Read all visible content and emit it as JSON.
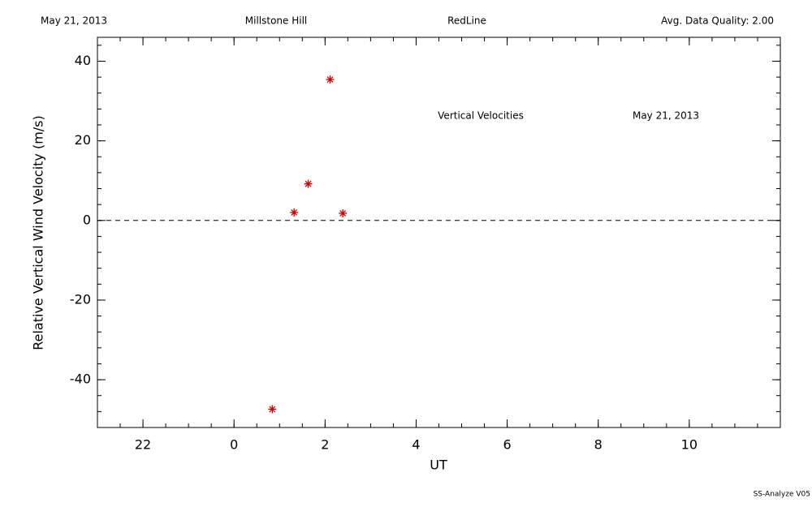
{
  "header": {
    "left": "May 21, 2013",
    "site": "Millstone Hill",
    "filter": "RedLine",
    "quality": "Avg. Data Quality: 2.00"
  },
  "footer": "SS-Analyze V05",
  "chart_data": {
    "type": "scatter",
    "annotations": [
      "Vertical Velocities",
      "May 21, 2013"
    ],
    "xlabel": "UT",
    "ylabel": "Relative Vertical Wind Velocity (m/s)",
    "x": [
      0.84,
      1.32,
      1.63,
      2.11,
      2.39
    ],
    "values": [
      -47.4,
      2.0,
      9.2,
      35.4,
      1.8
    ],
    "color": "#cc0000",
    "marker": "asterisk",
    "xlim": [
      -3,
      12
    ],
    "xticks": [
      {
        "value": -2,
        "label": "22"
      },
      0,
      2,
      4,
      6,
      8,
      10
    ],
    "ylim": [
      -52,
      46
    ],
    "yticks": [
      -40,
      -20,
      0,
      20,
      40
    ],
    "xminor_step": 0.5,
    "yminor_step": 4,
    "hline": 0
  }
}
